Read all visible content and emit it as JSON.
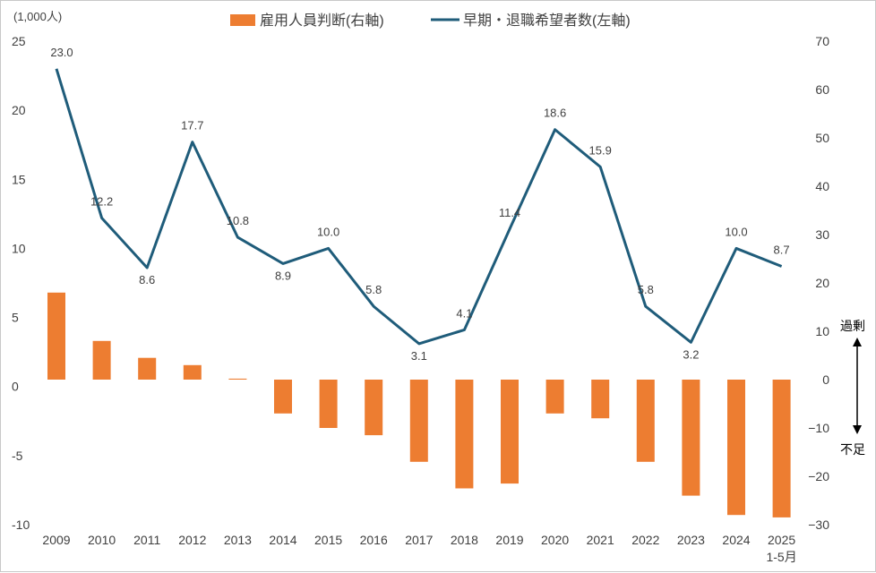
{
  "chart_data": {
    "type": "bar+line",
    "categories": [
      "2009",
      "2010",
      "2011",
      "2012",
      "2013",
      "2014",
      "2015",
      "2016",
      "2017",
      "2018",
      "2019",
      "2020",
      "2021",
      "2022",
      "2023",
      "2024",
      "2025\n1-5月"
    ],
    "series": [
      {
        "name": "雇用人員判断(右軸)",
        "type": "bar",
        "axis": "right",
        "color": "#ED7D31",
        "values": [
          18,
          8,
          4.5,
          3,
          0.2,
          -7,
          -10,
          -11.5,
          -17,
          -22.5,
          -21.5,
          -7,
          -8,
          -17,
          -24,
          -28,
          -28.5
        ]
      },
      {
        "name": "早期・退職希望者数(左軸)",
        "type": "line",
        "axis": "left",
        "color": "#1F5C7A",
        "values": [
          23.0,
          12.2,
          8.6,
          17.7,
          10.8,
          8.9,
          10.0,
          5.8,
          3.1,
          4.1,
          11.4,
          18.6,
          15.9,
          5.8,
          3.2,
          10.0,
          8.7
        ],
        "labels": [
          "23.0",
          "12.2",
          "8.6",
          "17.7",
          "10.8",
          "8.9",
          "10.0",
          "5.8",
          "3.1",
          "4.1",
          "11.4",
          "18.6",
          "15.9",
          "5.8",
          "3.2",
          "10.0",
          "8.7"
        ]
      }
    ],
    "left_axis": {
      "unit_label": "(1,000人)",
      "ylim": [
        -10,
        25
      ],
      "ticks": [
        "25",
        "20",
        "15",
        "10",
        "5",
        "0",
        "-5",
        "-10"
      ],
      "tick_values": [
        25,
        20,
        15,
        10,
        5,
        0,
        -5,
        -10
      ],
      "negative_color": "#FF0000"
    },
    "right_axis": {
      "ylim": [
        -30,
        70
      ],
      "ticks": [
        "70",
        "60",
        "50",
        "40",
        "30",
        "20",
        "10",
        "0",
        "−10",
        "−20",
        "−30"
      ],
      "tick_values": [
        70,
        60,
        50,
        40,
        30,
        20,
        10,
        0,
        -10,
        -20,
        -30
      ]
    },
    "annotations": {
      "top": "過剰",
      "bottom": "不足"
    },
    "grid": false,
    "legend": "top-center"
  }
}
